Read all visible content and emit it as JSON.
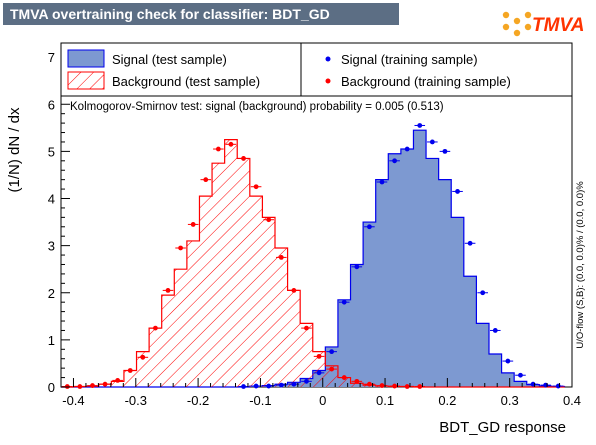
{
  "title": "TMVA overtraining check for classifier: BDT_GD",
  "logo_text": "TMVA",
  "chart_data": {
    "type": "histogram",
    "xlabel": "BDT_GD response",
    "ylabel": "(1/N) dN / dx",
    "right_label": "U/O-flow (S,B): (0.0, 0.0)% / (0.0, 0.0)%",
    "ks_annotation": "Kolmogorov-Smirnov test: signal (background) probability = 0.005 (0.513)",
    "xlim": [
      -0.42,
      0.4
    ],
    "ylim": [
      0,
      7.3
    ],
    "xticks": [
      -0.4,
      -0.3,
      -0.2,
      -0.1,
      0,
      0.1,
      0.2,
      0.3,
      0.4
    ],
    "xtick_labels": [
      "-0.4",
      "-0.3",
      "-0.2",
      "-0.1",
      "0",
      "0.1",
      "0.2",
      "0.3",
      "0.4"
    ],
    "yticks": [
      0,
      1,
      2,
      3,
      4,
      5,
      6,
      7
    ],
    "ytick_labels": [
      "0",
      "1",
      "2",
      "3",
      "4",
      "5",
      "6",
      "7"
    ],
    "grid": false,
    "bin_edges": [
      -0.42,
      -0.3998,
      -0.3796,
      -0.3594,
      -0.3392,
      -0.319,
      -0.2988,
      -0.2786,
      -0.2584,
      -0.2382,
      -0.218,
      -0.1978,
      -0.1776,
      -0.1574,
      -0.1372,
      -0.117,
      -0.0968,
      -0.0766,
      -0.0564,
      -0.0362,
      -0.016,
      0.0042,
      0.0244,
      0.0446,
      0.0648,
      0.085,
      0.1052,
      0.1254,
      0.1456,
      0.1658,
      0.186,
      0.2062,
      0.2264,
      0.2466,
      0.2668,
      0.287,
      0.3072,
      0.3274,
      0.3476,
      0.3678,
      0.388
    ],
    "series": [
      {
        "name": "Signal (test sample)",
        "style": "filled",
        "color": "#7d99d1",
        "edge_color": "#0000ee",
        "values": [
          0,
          0,
          0,
          0,
          0,
          0,
          0,
          0,
          0,
          0,
          0,
          0,
          0,
          0,
          0,
          0.02,
          0.03,
          0.06,
          0.1,
          0.18,
          0.35,
          0.85,
          1.85,
          2.6,
          3.5,
          4.4,
          4.95,
          5.05,
          5.45,
          4.85,
          4.4,
          3.6,
          2.35,
          1.35,
          0.7,
          0.3,
          0.12,
          0.05,
          0.02,
          0.01
        ]
      },
      {
        "name": "Background (test sample)",
        "style": "hatched",
        "color": "#ff0000",
        "values": [
          0,
          0.01,
          0.02,
          0.06,
          0.12,
          0.35,
          0.75,
          1.25,
          1.95,
          2.5,
          3.1,
          4.05,
          4.75,
          5.25,
          4.85,
          4.05,
          3.6,
          2.95,
          2.05,
          1.35,
          0.75,
          0.45,
          0.2,
          0.08,
          0.04,
          0.02,
          0.01,
          0.01,
          0,
          0,
          0,
          0,
          0,
          0,
          0,
          0,
          0,
          0,
          0,
          0
        ]
      },
      {
        "name": "Signal (training sample)",
        "style": "markers",
        "color": "#0000ee",
        "values": [
          null,
          null,
          null,
          null,
          null,
          null,
          null,
          null,
          null,
          null,
          null,
          null,
          null,
          null,
          0.01,
          0.02,
          0.02,
          0.04,
          0.06,
          0.12,
          0.3,
          0.75,
          1.8,
          2.55,
          3.4,
          4.35,
          4.8,
          5.05,
          5.55,
          5.2,
          5.0,
          4.15,
          3.05,
          2.0,
          1.2,
          0.55,
          0.25,
          0.06,
          0.04,
          0.02
        ]
      },
      {
        "name": "Background (training sample)",
        "style": "markers",
        "color": "#ff0000",
        "values": [
          0.01,
          0.01,
          0.03,
          0.06,
          0.14,
          0.35,
          0.63,
          1.25,
          2.05,
          2.95,
          3.45,
          4.4,
          5.05,
          5.15,
          4.85,
          4.25,
          3.55,
          2.75,
          2.05,
          1.25,
          0.65,
          0.38,
          0.2,
          0.12,
          0.06,
          0.03,
          0.02,
          0.01,
          0.01,
          null,
          null,
          null,
          null,
          null,
          null,
          null,
          null,
          null,
          null,
          null
        ]
      }
    ]
  }
}
